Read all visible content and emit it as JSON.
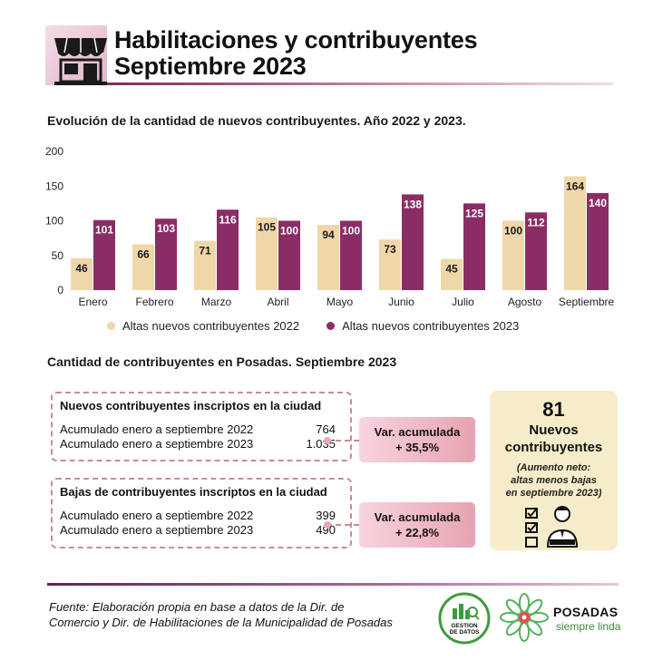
{
  "header": {
    "title_line1": "Habilitaciones y contribuyentes",
    "title_line2": "Septiembre 2023",
    "icon": "storefront-icon"
  },
  "chart_title": "Evolución de la cantidad de nuevos contribuyentes. Año 2022 y 2023.",
  "chart_data": {
    "type": "bar",
    "categories": [
      "Enero",
      "Febrero",
      "Marzo",
      "Abril",
      "Mayo",
      "Junio",
      "Julio",
      "Agosto",
      "Septiembre"
    ],
    "series": [
      {
        "name": "Altas nuevos contribuyentes 2022",
        "color": "#f0d7a9",
        "values": [
          46,
          66,
          71,
          105,
          94,
          73,
          45,
          100,
          164
        ]
      },
      {
        "name": "Altas nuevos contribuyentes 2023",
        "color": "#8b2d65",
        "values": [
          101,
          103,
          116,
          100,
          100,
          138,
          125,
          112,
          140
        ]
      }
    ],
    "yticks": [
      0,
      50,
      100,
      150,
      200
    ],
    "ylim": [
      0,
      200
    ],
    "grid": false,
    "legend": "bottom"
  },
  "section2_title": "Cantidad de contribuyentes en Posadas. Septiembre 2023",
  "nuevos": {
    "title": "Nuevos contribuyentes inscriptos en la ciudad",
    "rows": [
      {
        "label": "Acumulado enero a septiembre 2022",
        "value": "764"
      },
      {
        "label": "Acumulado enero a septiembre 2023",
        "value": "1.035"
      }
    ],
    "var_label": "Var. acumulada",
    "var_value": "+ 35,5%"
  },
  "bajas": {
    "title": "Bajas de contribuyentes inscriptos en la ciudad",
    "rows": [
      {
        "label": "Acumulado enero a septiembre 2022",
        "value": "399"
      },
      {
        "label": "Acumulado enero a septiembre 2023",
        "value": "490"
      }
    ],
    "var_label": "Var. acumulada",
    "var_value": "+ 22,8%"
  },
  "side_card": {
    "number": "81",
    "line1": "Nuevos",
    "line2": "contribuyentes",
    "note1": "(Aumento neto:",
    "note2": "altas menos bajas",
    "note3": "en septiembre 2023)",
    "icon": "checklist-person-icon"
  },
  "footer": {
    "source_line1": "Fuente: Elaboración propia en base a datos de la Dir. de",
    "source_line2": "Comercio  y Dir. de Habilitaciones de la Municipalidad de Posadas",
    "gestion_logo_line1": "GESTION",
    "gestion_logo_line2": "DE DATOS",
    "posadas_name": "POSADAS",
    "posadas_tagline": "siempre linda"
  }
}
